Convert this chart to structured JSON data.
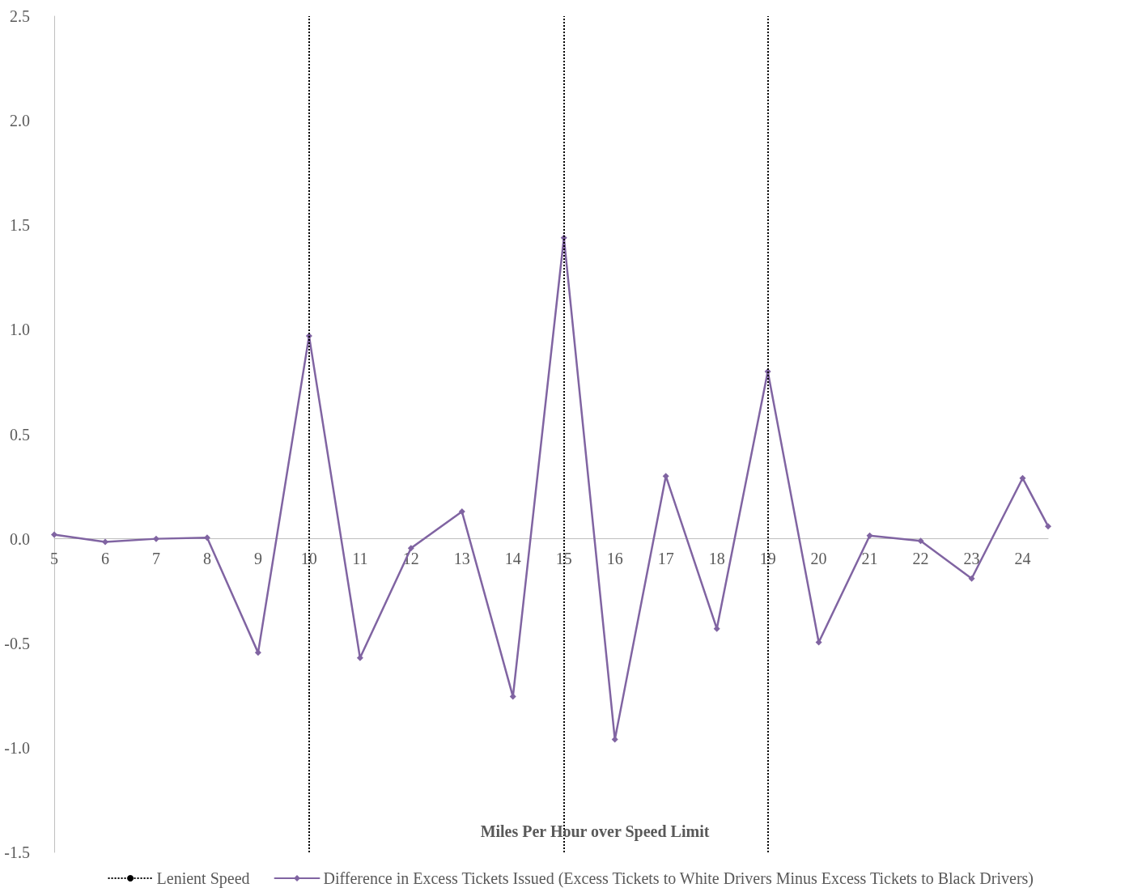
{
  "chart_data": {
    "type": "line",
    "xlabel": "Miles Per Hour over Speed Limit",
    "x": [
      5,
      6,
      7,
      8,
      9,
      10,
      11,
      12,
      13,
      14,
      15,
      16,
      17,
      18,
      19,
      20,
      21,
      22,
      23,
      24,
      24.5
    ],
    "series": [
      {
        "name": "Difference in Excess Tickets Issued (Excess Tickets to White Drivers Minus Excess Tickets to Black Drivers)",
        "color": "#8064a2",
        "values": [
          0.02,
          -0.015,
          0.0,
          0.005,
          -0.545,
          0.97,
          -0.57,
          -0.045,
          0.13,
          -0.755,
          1.44,
          -0.96,
          0.3,
          -0.43,
          0.8,
          -0.495,
          0.015,
          -0.01,
          -0.19,
          0.29,
          0.06
        ]
      }
    ],
    "xlim": [
      5,
      24.5
    ],
    "xticks": [
      5,
      6,
      7,
      8,
      9,
      10,
      11,
      12,
      13,
      14,
      15,
      16,
      17,
      18,
      19,
      20,
      21,
      22,
      23,
      24
    ],
    "ylim": [
      -1.5,
      2.5
    ],
    "yticks": [
      {
        "value": -1.5,
        "label": "-1.5"
      },
      {
        "value": -1,
        "label": "-1.0"
      },
      {
        "value": -0.5,
        "label": "-0.5"
      },
      {
        "value": 0,
        "label": "0.0"
      },
      {
        "value": 0.5,
        "label": "0.5"
      },
      {
        "value": 1,
        "label": "1.0"
      },
      {
        "value": 1.5,
        "label": "1.5"
      },
      {
        "value": 2,
        "label": "2.0"
      },
      {
        "value": 2.5,
        "label": "2.5"
      }
    ],
    "ref_lines": [
      {
        "axis": "x",
        "value": 10,
        "label": "Lenient Speed",
        "color": "#000000",
        "line_style": "dotted"
      },
      {
        "axis": "x",
        "value": 15,
        "color": "#000000",
        "line_style": "dotted"
      },
      {
        "axis": "x",
        "value": 19,
        "color": "#000000",
        "line_style": "dotted"
      }
    ],
    "marker": "diamond",
    "line_style": "solid",
    "grid": false,
    "legend": "bottom"
  }
}
